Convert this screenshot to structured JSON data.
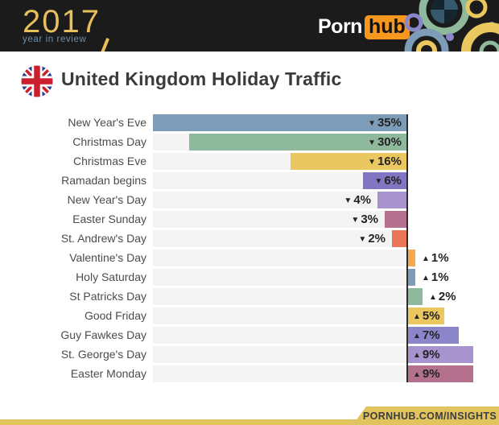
{
  "header": {
    "year": "2017",
    "tagline": "year in review",
    "brand_porn": "Porn",
    "brand_hub": "hub"
  },
  "title": {
    "text": "United Kingdom Holiday Traffic",
    "flag_icon": "uk-flag-icon"
  },
  "footer": {
    "site_label": "PORNHUB.COM/INSIGHTS"
  },
  "colors": {
    "header_bg": "#1b1b1b",
    "logo_gold": "#e7bf5b",
    "logo_blue": "#6e8fae",
    "hub_orange": "#f7971d",
    "banner_gold": "#e2c45f",
    "track_gray": "#f4f4f4",
    "axis_dark": "#2d2d2d",
    "title_text": "#3a3a3a",
    "label_text": "#4c4c4c",
    "value_text": "#242424"
  },
  "icons": {
    "decrease": "▼",
    "increase": "▲"
  },
  "chart_data": {
    "type": "bar",
    "orientation": "horizontal",
    "title": "United Kingdom Holiday Traffic",
    "unit": "%",
    "value_range": [
      -35,
      9
    ],
    "grid": false,
    "legend": false,
    "note": "negative bars extend left from zero axis, positive extend right; traffic change vs average",
    "rows": [
      {
        "label": "New Year's Eve",
        "value": -35,
        "display": "▼35%",
        "color": "#7d9cb8"
      },
      {
        "label": "Christmas Day",
        "value": -30,
        "display": "▼30%",
        "color": "#8fb99d"
      },
      {
        "label": "Christmas Eve",
        "value": -16,
        "display": "▼16%",
        "color": "#ebc75f"
      },
      {
        "label": "Ramadan begins",
        "value": -6,
        "display": "▼6%",
        "color": "#8276c2"
      },
      {
        "label": "New Year's Day",
        "value": -4,
        "display": "▼4%",
        "color": "#a793cd"
      },
      {
        "label": "Easter Sunday",
        "value": -3,
        "display": "▼3%",
        "color": "#b4718e"
      },
      {
        "label": "St. Andrew's Day",
        "value": -2,
        "display": "▼2%",
        "color": "#e97457"
      },
      {
        "label": "Valentine's Day",
        "value": 1,
        "display": "▲1%",
        "color": "#f4a850"
      },
      {
        "label": "Holy Saturday",
        "value": 1,
        "display": "▲1%",
        "color": "#7d9cb8"
      },
      {
        "label": "St Patricks Day",
        "value": 2,
        "display": "▲2%",
        "color": "#8fb99d"
      },
      {
        "label": "Good Friday",
        "value": 5,
        "display": "▲5%",
        "color": "#ebc75f"
      },
      {
        "label": "Guy Fawkes Day",
        "value": 7,
        "display": "▲7%",
        "color": "#8b86ca"
      },
      {
        "label": "St. George's Day",
        "value": 9,
        "display": "▲9%",
        "color": "#a793cd"
      },
      {
        "label": "Easter Monday",
        "value": 9,
        "display": "▲9%",
        "color": "#b4718e"
      }
    ]
  }
}
